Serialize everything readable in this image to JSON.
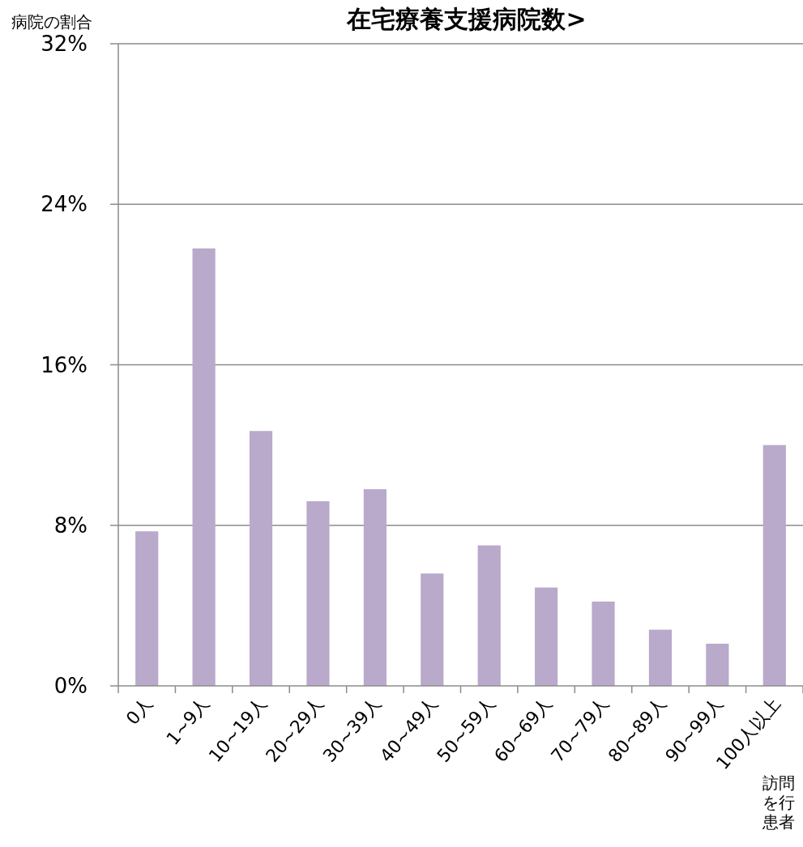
{
  "chart_data": {
    "type": "bar",
    "title": "在宅療養支援病院数>",
    "ylabel": "病院の割合",
    "categories": [
      "0人",
      "1~9人",
      "10~19人",
      "20~29人",
      "30~39人",
      "40~49人",
      "50~59人",
      "60~69人",
      "70~79人",
      "80~89人",
      "90~99人",
      "100人以上"
    ],
    "values": [
      7.7,
      21.8,
      12.7,
      9.2,
      9.8,
      5.6,
      7.0,
      4.9,
      4.2,
      2.8,
      2.1,
      12.0
    ],
    "color": "#b9a9cb",
    "ylim": [
      0,
      32
    ],
    "yticks": [
      {
        "value": 0,
        "label": "0%"
      },
      {
        "value": 8,
        "label": "8%"
      },
      {
        "value": 16,
        "label": "16%"
      },
      {
        "value": 24,
        "label": "24%"
      },
      {
        "value": 32,
        "label": "32%"
      }
    ],
    "grid": "y",
    "annotations": [
      "訪問",
      "を行",
      "患者"
    ]
  }
}
